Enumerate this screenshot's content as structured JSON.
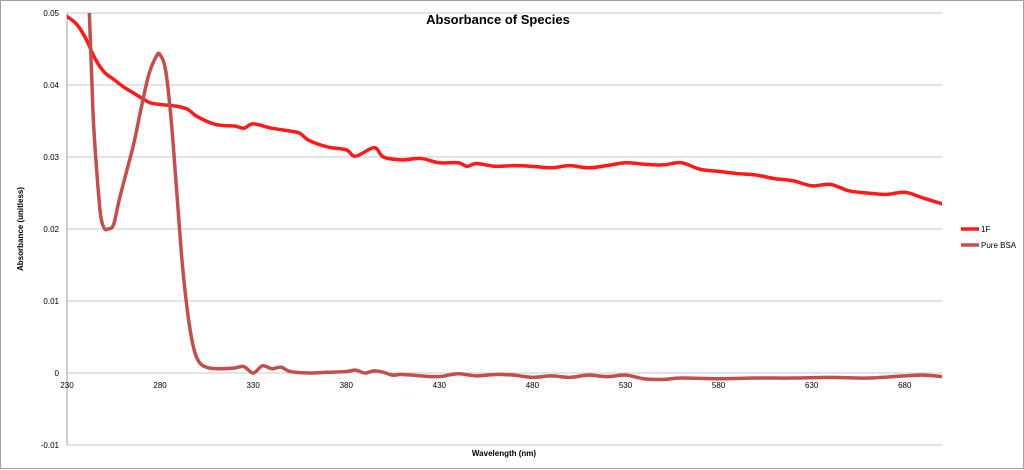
{
  "chart_data": {
    "type": "line",
    "title": "Absorbance of Species",
    "xlabel": "Wavelength (nm)",
    "ylabel": "Absorbance (unitless)",
    "xlim": [
      230,
      700
    ],
    "ylim": [
      -0.01,
      0.05
    ],
    "x_ticks": [
      "230",
      "280",
      "330",
      "380",
      "430",
      "480",
      "530",
      "580",
      "630",
      "680"
    ],
    "y_ticks": [
      "0.05",
      "0.04",
      "0.03",
      "0.02",
      "0.01",
      "0",
      "-0.01"
    ],
    "grid": "horizontal",
    "legend_position": "right",
    "series": [
      {
        "name": "1F",
        "color": "#ff1a1a",
        "x": [
          230,
          235,
          240,
          245,
          250,
          255,
          260,
          265,
          270,
          275,
          280,
          290,
          295,
          300,
          310,
          320,
          325,
          330,
          340,
          350,
          355,
          360,
          370,
          380,
          385,
          395,
          400,
          410,
          420,
          430,
          440,
          445,
          450,
          460,
          470,
          480,
          490,
          500,
          510,
          520,
          530,
          540,
          550,
          560,
          570,
          580,
          590,
          600,
          610,
          620,
          630,
          640,
          650,
          660,
          670,
          680,
          690,
          700
        ],
        "y": [
          0.0495,
          0.0485,
          0.0465,
          0.0437,
          0.0418,
          0.0408,
          0.0398,
          0.039,
          0.0382,
          0.0375,
          0.0373,
          0.037,
          0.0366,
          0.0356,
          0.0345,
          0.0343,
          0.034,
          0.0346,
          0.034,
          0.0336,
          0.0333,
          0.0323,
          0.0314,
          0.031,
          0.0301,
          0.0313,
          0.03,
          0.0296,
          0.0298,
          0.0292,
          0.0292,
          0.0287,
          0.0291,
          0.0287,
          0.0288,
          0.0287,
          0.0285,
          0.0288,
          0.0285,
          0.0288,
          0.0292,
          0.029,
          0.0289,
          0.0292,
          0.0283,
          0.028,
          0.0277,
          0.0275,
          0.027,
          0.0267,
          0.026,
          0.0262,
          0.0253,
          0.025,
          0.0248,
          0.0251,
          0.0243,
          0.0235
        ]
      },
      {
        "name": "Pure BSA",
        "color": "#c0504d",
        "x": [
          240,
          242,
          244,
          246,
          248,
          250,
          252,
          255,
          258,
          262,
          266,
          270,
          274,
          278,
          280,
          283,
          286,
          289,
          292,
          295,
          298,
          301,
          305,
          310,
          320,
          325,
          330,
          335,
          340,
          345,
          350,
          360,
          370,
          380,
          385,
          390,
          395,
          400,
          405,
          410,
          420,
          430,
          440,
          450,
          460,
          470,
          480,
          490,
          500,
          510,
          520,
          530,
          540,
          550,
          560,
          580,
          600,
          620,
          640,
          660,
          680,
          690,
          700
        ],
        "y": [
          0.07,
          0.05,
          0.036,
          0.028,
          0.022,
          0.0201,
          0.02,
          0.0206,
          0.024,
          0.028,
          0.032,
          0.037,
          0.0415,
          0.044,
          0.0442,
          0.042,
          0.035,
          0.025,
          0.015,
          0.008,
          0.0035,
          0.0015,
          0.0008,
          0.0006,
          0.0007,
          0.0009,
          0.0,
          0.001,
          0.0006,
          0.0008,
          0.0002,
          0.0,
          0.0001,
          0.0002,
          0.0004,
          0.0,
          0.0003,
          0.0001,
          -0.0003,
          -0.0002,
          -0.0004,
          -0.0005,
          -0.0001,
          -0.0004,
          -0.0002,
          -0.0003,
          -0.0006,
          -0.0004,
          -0.0006,
          -0.0003,
          -0.0005,
          -0.0003,
          -0.0008,
          -0.0009,
          -0.0007,
          -0.0008,
          -0.0007,
          -0.0007,
          -0.0006,
          -0.0007,
          -0.0004,
          -0.0003,
          -0.0005
        ]
      }
    ]
  }
}
